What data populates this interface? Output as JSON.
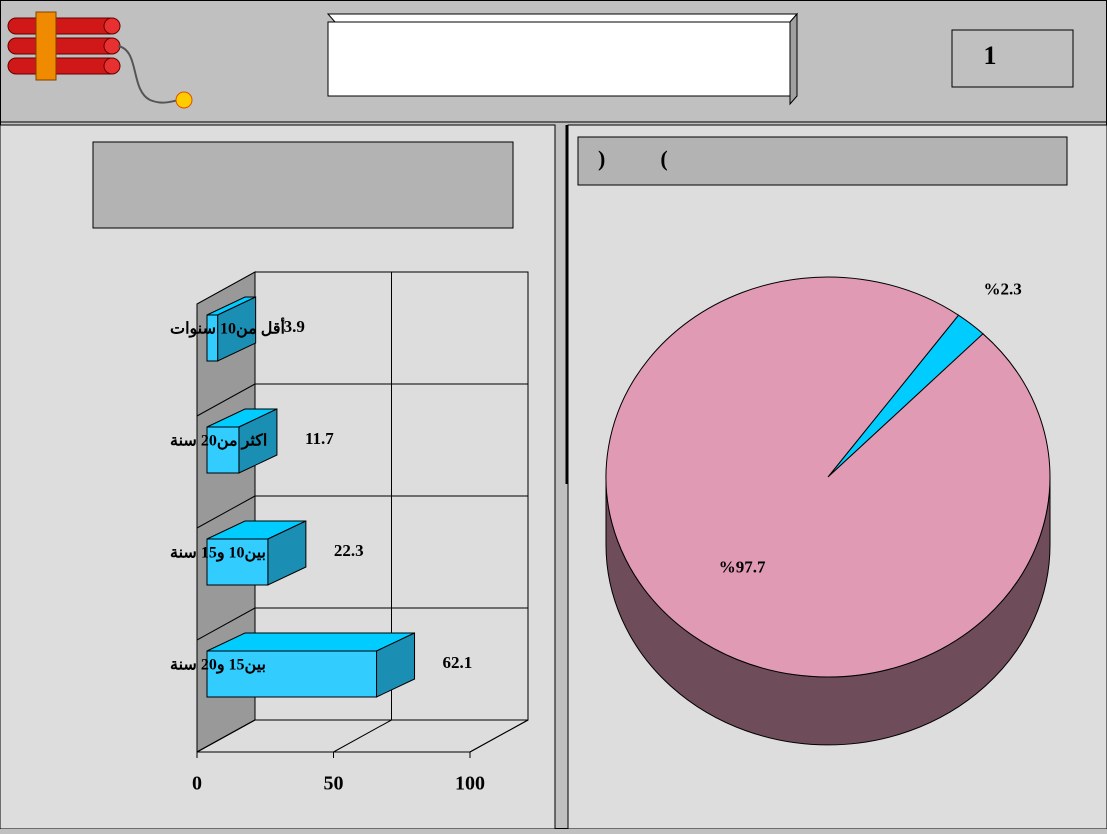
{
  "page_number": "1",
  "chart_data": [
    {
      "type": "bar",
      "orientation": "horizontal",
      "categories": [
        "أقل من10 سنوات",
        "اكثر من20 سنة",
        "بين10 و15 سنة",
        "بين15 و20 سنة"
      ],
      "values": [
        3.9,
        11.7,
        22.3,
        62.1
      ],
      "color": "#33ccff",
      "xlim": [
        0,
        100
      ],
      "xticks": [
        0,
        50,
        100
      ],
      "grid": true
    },
    {
      "type": "pie",
      "title": ")          (",
      "values": [
        2.3,
        97.7
      ],
      "value_labels": [
        "%2.3",
        "%97.7"
      ],
      "colors": [
        "#00ccff",
        "#e09ab4"
      ]
    }
  ]
}
